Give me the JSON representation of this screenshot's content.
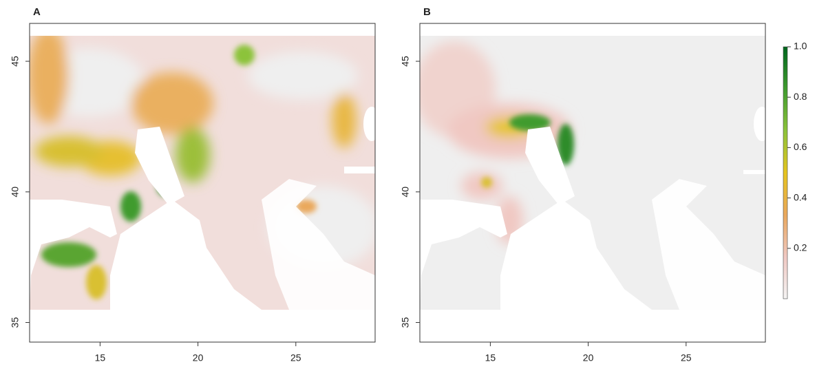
{
  "chart_data": [
    {
      "type": "raster",
      "title": "A",
      "xlim": [
        11.4,
        29.05
      ],
      "ylim": [
        34.25,
        46.45
      ],
      "xticks": [
        15,
        20,
        25
      ],
      "yticks": [
        35,
        40,
        45
      ]
    },
    {
      "type": "raster",
      "title": "B",
      "xlim": [
        11.4,
        29.05
      ],
      "ylim": [
        34.25,
        46.45
      ],
      "xticks": [
        15,
        20,
        25
      ],
      "yticks": [
        35,
        40,
        45
      ],
      "colorbar": {
        "lim": [
          0,
          1
        ],
        "ticks": [
          0.2,
          0.4,
          0.6,
          0.8,
          {
            "value": 1,
            "label": "1.0"
          }
        ],
        "colors": [
          "#f4f4f4",
          "#f0c8c2",
          "#eaa85c",
          "#e6c41e",
          "#8cc33a",
          "#3f9b2e",
          "#00661d"
        ]
      }
    }
  ]
}
